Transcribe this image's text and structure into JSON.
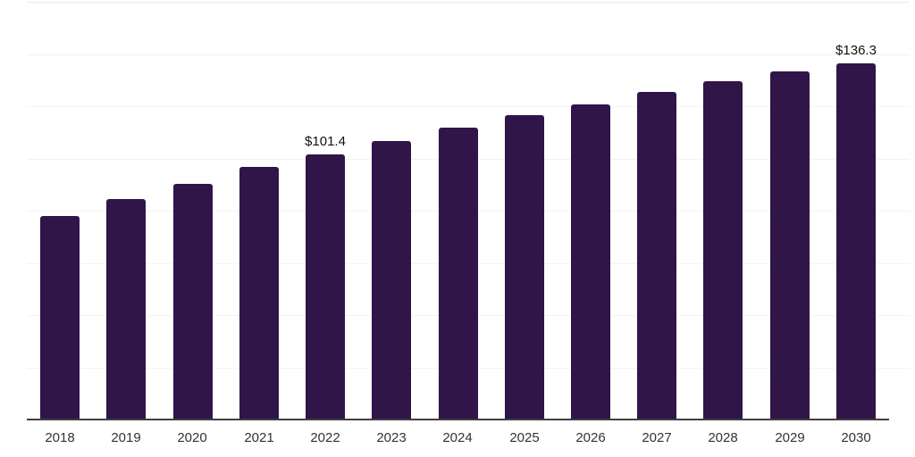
{
  "chart_data": {
    "type": "bar",
    "title": "",
    "xlabel": "",
    "ylabel": "",
    "categories": [
      "2018",
      "2019",
      "2020",
      "2021",
      "2022",
      "2023",
      "2024",
      "2025",
      "2026",
      "2027",
      "2028",
      "2029",
      "2030"
    ],
    "values": [
      77.9,
      84.4,
      90.4,
      96.8,
      101.4,
      106.6,
      111.8,
      116.6,
      120.8,
      125.3,
      129.6,
      133.3,
      136.3
    ],
    "data_labels": [
      null,
      null,
      null,
      null,
      "$101.4",
      null,
      null,
      null,
      null,
      null,
      null,
      null,
      "$136.3"
    ],
    "ylim": [
      0,
      160
    ],
    "grid_step": 20,
    "grid_on": true,
    "legend_position": "none",
    "colors": {
      "bar": "#301548",
      "axis_line": "#3f3f3f",
      "gridline": "#f3f3f3",
      "gridline_top": "#e8e8e8",
      "tick_label": "#333333",
      "data_label": "#111111"
    }
  }
}
